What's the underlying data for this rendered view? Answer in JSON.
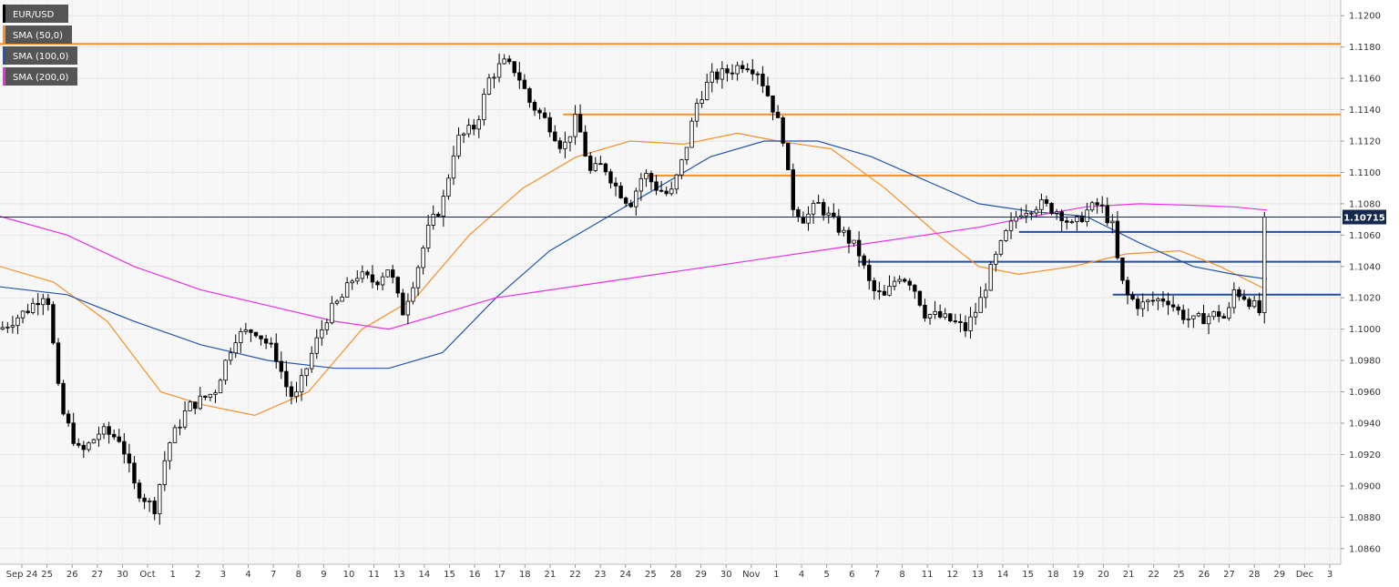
{
  "legend": [
    {
      "label": "EUR/USD",
      "color": "#000000"
    },
    {
      "label": "SMA (50,0)",
      "color": "#f5902a"
    },
    {
      "label": "SMA (100,0)",
      "color": "#2456a8"
    },
    {
      "label": "SMA (200,0)",
      "color": "#e830e8"
    }
  ],
  "colors": {
    "background": "#f7f7f7",
    "grid": "#e6e6e6",
    "bull": "#ffffff",
    "bear": "#000000",
    "resistance": "#f5902a",
    "support": "#1f4fa8",
    "price_line": "#14284e"
  },
  "chart_data": {
    "type": "candlestick",
    "title": "",
    "xlabel": "",
    "ylabel": "",
    "ylim": [
      1.085,
      1.121
    ],
    "yticks": [
      "1.0860",
      "1.0880",
      "1.0900",
      "1.0920",
      "1.0940",
      "1.0960",
      "1.0980",
      "1.1000",
      "1.1020",
      "1.1040",
      "1.1060",
      "1.1080",
      "1.1100",
      "1.1120",
      "1.1140",
      "1.1160",
      "1.1180",
      "1.1200"
    ],
    "xticks": [
      "Sep 24",
      "25",
      "26",
      "27",
      "30",
      "Oct",
      "1",
      "2",
      "3",
      "4",
      "7",
      "8",
      "9",
      "10",
      "11",
      "13",
      "14",
      "15",
      "16",
      "17",
      "18",
      "21",
      "22",
      "23",
      "24",
      "25",
      "28",
      "29",
      "30",
      "Nov",
      "1",
      "4",
      "5",
      "6",
      "7",
      "8",
      "11",
      "12",
      "13",
      "14",
      "15",
      "18",
      "19",
      "20",
      "21",
      "22",
      "25",
      "26",
      "27",
      "28",
      "29",
      "Dec",
      "3"
    ],
    "last_price": {
      "label": "1.10715",
      "value": 1.10715
    },
    "horizontal_lines": [
      {
        "kind": "resistance",
        "y": 1.1182,
        "x_from": 0.0
      },
      {
        "kind": "resistance",
        "y": 1.1137,
        "x_from": 0.42
      },
      {
        "kind": "resistance",
        "y": 1.1098,
        "x_from": 0.48
      },
      {
        "kind": "support",
        "y": 1.1062,
        "x_from": 0.76
      },
      {
        "kind": "support",
        "y": 1.1043,
        "x_from": 0.64
      },
      {
        "kind": "support",
        "y": 1.1022,
        "x_from": 0.83
      }
    ],
    "price_path": [
      [
        0.0,
        1.1
      ],
      [
        0.02,
        1.1012
      ],
      [
        0.035,
        1.1025
      ],
      [
        0.045,
        1.095
      ],
      [
        0.06,
        1.092
      ],
      [
        0.075,
        1.0935
      ],
      [
        0.09,
        1.093
      ],
      [
        0.1,
        1.09
      ],
      [
        0.115,
        1.0885
      ],
      [
        0.125,
        1.0925
      ],
      [
        0.14,
        1.095
      ],
      [
        0.16,
        1.096
      ],
      [
        0.175,
        1.0995
      ],
      [
        0.19,
        1.1
      ],
      [
        0.205,
        1.0985
      ],
      [
        0.215,
        1.096
      ],
      [
        0.22,
        1.0955
      ],
      [
        0.235,
        1.099
      ],
      [
        0.245,
        1.101
      ],
      [
        0.255,
        1.102
      ],
      [
        0.265,
        1.1035
      ],
      [
        0.28,
        1.103
      ],
      [
        0.29,
        1.104
      ],
      [
        0.3,
        1.101
      ],
      [
        0.31,
        1.1035
      ],
      [
        0.32,
        1.1065
      ],
      [
        0.33,
        1.108
      ],
      [
        0.34,
        1.112
      ],
      [
        0.355,
        1.113
      ],
      [
        0.365,
        1.116
      ],
      [
        0.375,
        1.117
      ],
      [
        0.385,
        1.1165
      ],
      [
        0.395,
        1.1145
      ],
      [
        0.41,
        1.113
      ],
      [
        0.42,
        1.1115
      ],
      [
        0.43,
        1.1135
      ],
      [
        0.44,
        1.11
      ],
      [
        0.45,
        1.1105
      ],
      [
        0.46,
        1.109
      ],
      [
        0.47,
        1.108
      ],
      [
        0.48,
        1.11
      ],
      [
        0.49,
        1.109
      ],
      [
        0.5,
        1.1085
      ],
      [
        0.51,
        1.111
      ],
      [
        0.52,
        1.1145
      ],
      [
        0.53,
        1.116
      ],
      [
        0.545,
        1.1165
      ],
      [
        0.555,
        1.117
      ],
      [
        0.565,
        1.1165
      ],
      [
        0.575,
        1.1145
      ],
      [
        0.585,
        1.112
      ],
      [
        0.59,
        1.108
      ],
      [
        0.6,
        1.107
      ],
      [
        0.61,
        1.108
      ],
      [
        0.62,
        1.107
      ],
      [
        0.63,
        1.106
      ],
      [
        0.64,
        1.105
      ],
      [
        0.65,
        1.1025
      ],
      [
        0.66,
        1.102
      ],
      [
        0.67,
        1.1035
      ],
      [
        0.68,
        1.103
      ],
      [
        0.69,
        1.101
      ],
      [
        0.7,
        1.1008
      ],
      [
        0.71,
        1.1005
      ],
      [
        0.72,
        1.1
      ],
      [
        0.73,
        1.1015
      ],
      [
        0.74,
        1.104
      ],
      [
        0.75,
        1.106
      ],
      [
        0.76,
        1.1075
      ],
      [
        0.775,
        1.108
      ],
      [
        0.79,
        1.1075
      ],
      [
        0.8,
        1.1065
      ],
      [
        0.81,
        1.1075
      ],
      [
        0.82,
        1.108
      ],
      [
        0.83,
        1.1065
      ],
      [
        0.835,
        1.1035
      ],
      [
        0.84,
        1.1022
      ],
      [
        0.85,
        1.1015
      ],
      [
        0.86,
        1.1018
      ],
      [
        0.87,
        1.102
      ],
      [
        0.88,
        1.101
      ],
      [
        0.89,
        1.1005
      ],
      [
        0.9,
        1.1008
      ],
      [
        0.91,
        1.101
      ],
      [
        0.915,
        1.1005
      ],
      [
        0.92,
        1.1025
      ],
      [
        0.93,
        1.102
      ],
      [
        0.935,
        1.1015
      ],
      [
        0.94,
        1.101
      ],
      [
        0.943,
        1.1068
      ],
      [
        0.945,
        1.10715
      ]
    ],
    "series": [
      {
        "name": "SMA (50,0)",
        "color": "#f5902a",
        "points": [
          [
            0.0,
            1.104
          ],
          [
            0.04,
            1.103
          ],
          [
            0.08,
            1.1005
          ],
          [
            0.12,
            1.096
          ],
          [
            0.15,
            1.0952
          ],
          [
            0.19,
            1.0945
          ],
          [
            0.23,
            1.096
          ],
          [
            0.27,
            1.1
          ],
          [
            0.31,
            1.102
          ],
          [
            0.35,
            1.106
          ],
          [
            0.39,
            1.109
          ],
          [
            0.43,
            1.111
          ],
          [
            0.47,
            1.112
          ],
          [
            0.51,
            1.1118
          ],
          [
            0.55,
            1.1125
          ],
          [
            0.58,
            1.112
          ],
          [
            0.62,
            1.1115
          ],
          [
            0.66,
            1.109
          ],
          [
            0.7,
            1.106
          ],
          [
            0.73,
            1.104
          ],
          [
            0.76,
            1.1035
          ],
          [
            0.8,
            1.104
          ],
          [
            0.84,
            1.1048
          ],
          [
            0.88,
            1.105
          ],
          [
            0.91,
            1.104
          ],
          [
            0.945,
            1.1025
          ]
        ]
      },
      {
        "name": "SMA (100,0)",
        "color": "#2456a8",
        "points": [
          [
            0.0,
            1.1027
          ],
          [
            0.05,
            1.1022
          ],
          [
            0.1,
            1.1005
          ],
          [
            0.15,
            1.099
          ],
          [
            0.2,
            1.098
          ],
          [
            0.25,
            1.0975
          ],
          [
            0.29,
            1.0975
          ],
          [
            0.33,
            1.0985
          ],
          [
            0.37,
            1.102
          ],
          [
            0.41,
            1.105
          ],
          [
            0.45,
            1.107
          ],
          [
            0.49,
            1.109
          ],
          [
            0.53,
            1.111
          ],
          [
            0.57,
            1.112
          ],
          [
            0.61,
            1.112
          ],
          [
            0.65,
            1.111
          ],
          [
            0.69,
            1.1095
          ],
          [
            0.73,
            1.108
          ],
          [
            0.77,
            1.1075
          ],
          [
            0.81,
            1.1072
          ],
          [
            0.85,
            1.1055
          ],
          [
            0.89,
            1.104
          ],
          [
            0.92,
            1.1035
          ],
          [
            0.945,
            1.1032
          ]
        ]
      },
      {
        "name": "SMA (200,0)",
        "color": "#e830e8",
        "points": [
          [
            0.0,
            1.1072
          ],
          [
            0.05,
            1.106
          ],
          [
            0.1,
            1.104
          ],
          [
            0.15,
            1.1025
          ],
          [
            0.2,
            1.1015
          ],
          [
            0.25,
            1.1005
          ],
          [
            0.29,
            1.1
          ],
          [
            0.33,
            1.101
          ],
          [
            0.37,
            1.102
          ],
          [
            0.41,
            1.1025
          ],
          [
            0.45,
            1.103
          ],
          [
            0.49,
            1.1035
          ],
          [
            0.53,
            1.104
          ],
          [
            0.57,
            1.1045
          ],
          [
            0.61,
            1.105
          ],
          [
            0.65,
            1.1055
          ],
          [
            0.69,
            1.106
          ],
          [
            0.73,
            1.1065
          ],
          [
            0.77,
            1.1072
          ],
          [
            0.81,
            1.1078
          ],
          [
            0.85,
            1.108
          ],
          [
            0.89,
            1.1079
          ],
          [
            0.92,
            1.1078
          ],
          [
            0.945,
            1.1076
          ]
        ]
      }
    ]
  }
}
